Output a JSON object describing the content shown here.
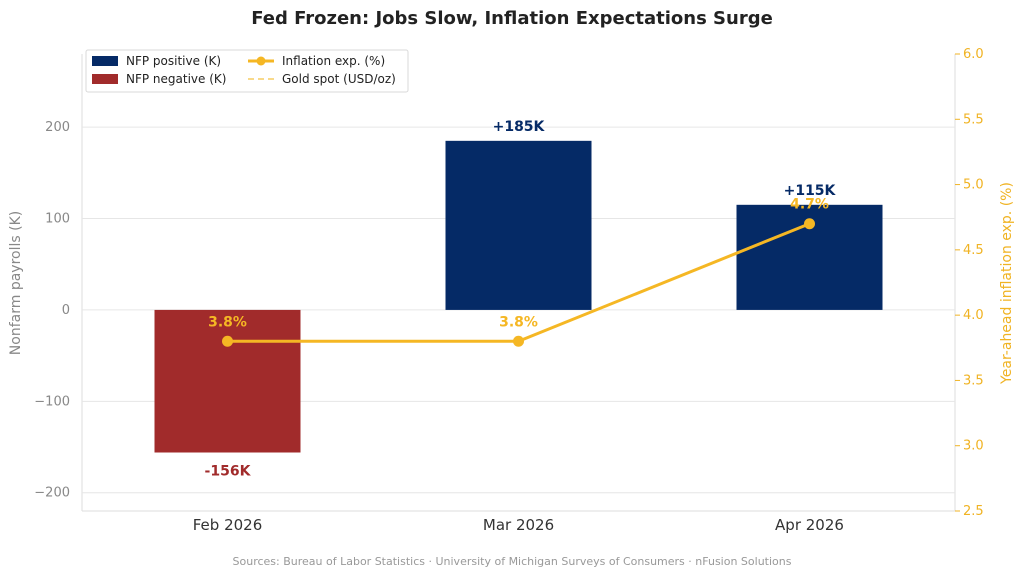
{
  "chart_data": {
    "type": "bar",
    "title": "Fed Frozen: Jobs Slow, Inflation Expectations Surge",
    "categories": [
      "Feb 2026",
      "Mar 2026",
      "Apr 2026"
    ],
    "ylabel": "Nonfarm payrolls (K)",
    "y2label": "Year-ahead inflation exp. (%)",
    "ylim": [
      -220,
      280
    ],
    "yticks": [
      -200,
      -100,
      0,
      100,
      200
    ],
    "ytick_labels": [
      "−200",
      "−100",
      "0",
      "100",
      "200"
    ],
    "y2lim": [
      2.5,
      6.0
    ],
    "y2ticks": [
      2.5,
      3.0,
      3.5,
      4.0,
      4.5,
      5.0,
      5.5,
      6.0
    ],
    "y2tick_labels": [
      "2.5",
      "3.0",
      "3.5",
      "4.0",
      "4.5",
      "5.0",
      "5.5",
      "6.0"
    ],
    "grid": true,
    "legend_position": "top-left",
    "series": [
      {
        "name": "NFP (K)",
        "kind": "bar",
        "axis": "left",
        "values": [
          -156,
          185,
          115
        ],
        "labels": [
          "-156K",
          "+185K",
          "+115K"
        ]
      },
      {
        "name": "Inflation exp. (%)",
        "kind": "line",
        "axis": "right",
        "values": [
          3.8,
          3.8,
          4.7
        ],
        "labels": [
          "3.8%",
          "3.8%",
          "4.7%"
        ]
      }
    ],
    "legend": [
      {
        "label": "NFP positive (K)",
        "kind": "bar",
        "color": "#052a66"
      },
      {
        "label": "NFP negative (K)",
        "kind": "bar",
        "color": "#a12b2b"
      },
      {
        "label": "Inflation exp. (%)",
        "kind": "line-marker",
        "color": "#f5b724"
      },
      {
        "label": "Gold spot (USD/oz)",
        "kind": "dashed-line",
        "color": "#f8d98a"
      }
    ]
  },
  "colors": {
    "positive": "#052a66",
    "negative": "#a12b2b",
    "inflation": "#f5b724",
    "gold_spot": "#f8d98a",
    "left_axis": "#888888",
    "right_axis": "#f0b323",
    "grid": "#e6e6e6"
  },
  "footer": "Sources: Bureau of Labor Statistics · University of Michigan Surveys of Consumers · nFusion Solutions"
}
